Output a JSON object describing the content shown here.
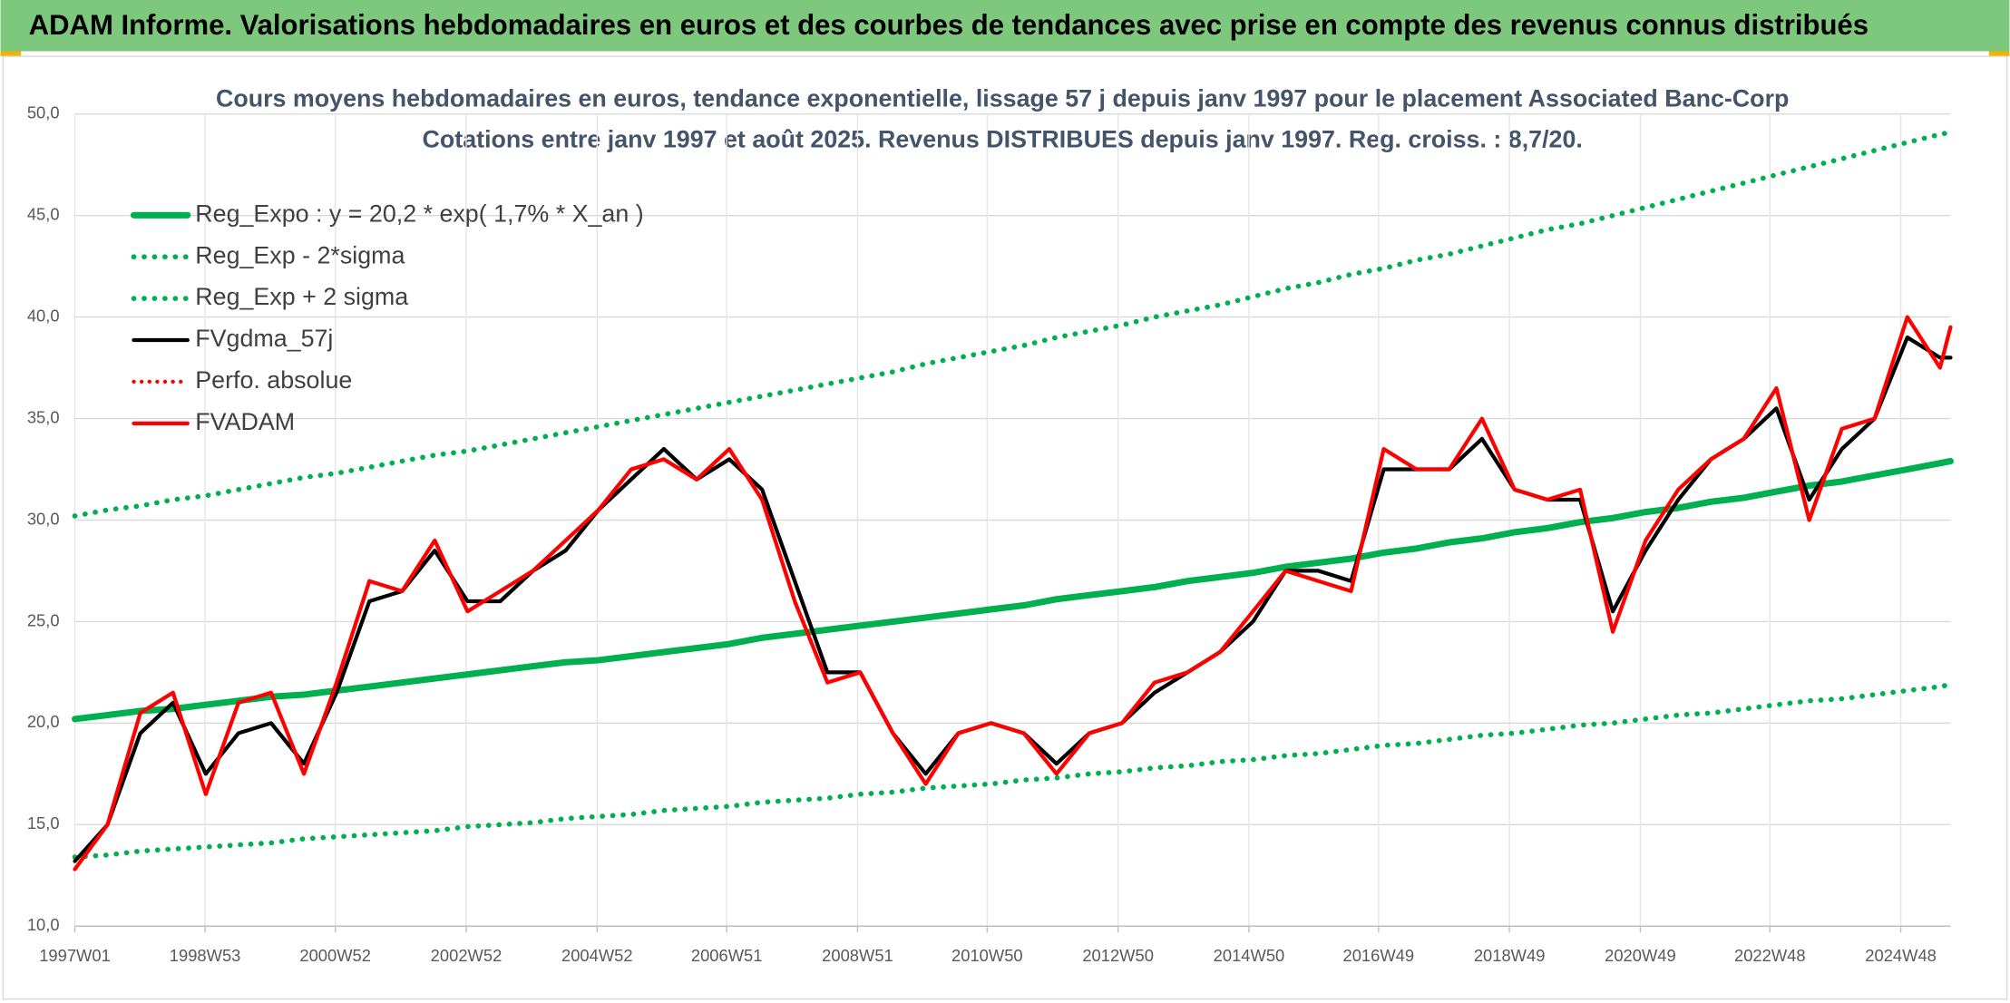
{
  "header": {
    "title": "ADAM Informe. Valorisations hebdomadaires en euros et des courbes de tendances avec prise en compte des revenus connus distribués"
  },
  "chart_data": {
    "type": "line",
    "title": "Cours moyens hebdomadaires en euros, tendance exponentielle, lissage 57 j depuis janv 1997 pour le placement Associated Banc-Corp",
    "subtitle": "Cotations entre janv 1997 et août 2025. Revenus DISTRIBUES depuis janv 1997. Reg. croiss. : 8,7/20.",
    "x": [
      1997.0,
      1997.5,
      1998.0,
      1998.5,
      1999.0,
      1999.5,
      2000.0,
      2000.5,
      2001.0,
      2001.5,
      2002.0,
      2002.5,
      2003.0,
      2003.5,
      2004.0,
      2004.5,
      2005.0,
      2005.5,
      2006.0,
      2006.5,
      2007.0,
      2007.5,
      2008.0,
      2008.5,
      2009.0,
      2009.5,
      2010.0,
      2010.5,
      2011.0,
      2011.5,
      2012.0,
      2012.5,
      2013.0,
      2013.5,
      2014.0,
      2014.5,
      2015.0,
      2015.5,
      2016.0,
      2016.5,
      2017.0,
      2017.5,
      2018.0,
      2018.5,
      2019.0,
      2019.5,
      2020.0,
      2020.5,
      2021.0,
      2021.5,
      2022.0,
      2022.5,
      2023.0,
      2023.5,
      2024.0,
      2024.5,
      2025.0,
      2025.5,
      2025.66
    ],
    "xlim": [
      1997.0,
      2025.66
    ],
    "xticks": [
      {
        "value": 1997.0,
        "label": "1997W01"
      },
      {
        "value": 1998.99,
        "label": "1998W53"
      },
      {
        "value": 2000.98,
        "label": "2000W52"
      },
      {
        "value": 2002.98,
        "label": "2002W52"
      },
      {
        "value": 2004.98,
        "label": "2004W52"
      },
      {
        "value": 2006.96,
        "label": "2006W51"
      },
      {
        "value": 2008.96,
        "label": "2008W51"
      },
      {
        "value": 2010.94,
        "label": "2010W50"
      },
      {
        "value": 2012.94,
        "label": "2012W50"
      },
      {
        "value": 2014.94,
        "label": "2014W50"
      },
      {
        "value": 2016.92,
        "label": "2016W49"
      },
      {
        "value": 2018.92,
        "label": "2018W49"
      },
      {
        "value": 2020.92,
        "label": "2020W49"
      },
      {
        "value": 2022.9,
        "label": "2022W48"
      },
      {
        "value": 2024.9,
        "label": "2024W48"
      }
    ],
    "ylim": [
      10,
      50
    ],
    "yticks": [
      {
        "value": 10,
        "label": "10,0"
      },
      {
        "value": 15,
        "label": "15,0"
      },
      {
        "value": 20,
        "label": "20,0"
      },
      {
        "value": 25,
        "label": "25,0"
      },
      {
        "value": 30,
        "label": "30,0"
      },
      {
        "value": 35,
        "label": "35,0"
      },
      {
        "value": 40,
        "label": "40,0"
      },
      {
        "value": 45,
        "label": "45,0"
      },
      {
        "value": 50,
        "label": "50,0"
      }
    ],
    "grid": true,
    "legend": "upper left",
    "series": [
      {
        "name": "Reg_Expo : y = 20,2 * exp( 1,7% *  X_an )",
        "color": "#00b050",
        "style": "solid",
        "width": 5,
        "values": [
          20.2,
          20.4,
          20.6,
          20.7,
          20.9,
          21.1,
          21.3,
          21.4,
          21.6,
          21.8,
          22.0,
          22.2,
          22.4,
          22.6,
          22.8,
          23.0,
          23.1,
          23.3,
          23.5,
          23.7,
          23.9,
          24.2,
          24.4,
          24.6,
          24.8,
          25.0,
          25.2,
          25.4,
          25.6,
          25.8,
          26.1,
          26.3,
          26.5,
          26.7,
          27.0,
          27.2,
          27.4,
          27.7,
          27.9,
          28.1,
          28.4,
          28.6,
          28.9,
          29.1,
          29.4,
          29.6,
          29.9,
          30.1,
          30.4,
          30.6,
          30.9,
          31.1,
          31.4,
          31.7,
          31.9,
          32.2,
          32.5,
          32.8,
          32.9
        ]
      },
      {
        "name": "Reg_Exp - 2*sigma",
        "color": "#00b050",
        "style": "dotted",
        "width": 4,
        "values": [
          13.4,
          13.5,
          13.7,
          13.8,
          13.9,
          14.0,
          14.1,
          14.3,
          14.4,
          14.5,
          14.6,
          14.7,
          14.9,
          15.0,
          15.1,
          15.3,
          15.4,
          15.5,
          15.7,
          15.8,
          15.9,
          16.1,
          16.2,
          16.3,
          16.5,
          16.6,
          16.8,
          16.9,
          17.0,
          17.2,
          17.3,
          17.5,
          17.6,
          17.8,
          17.9,
          18.1,
          18.2,
          18.4,
          18.5,
          18.7,
          18.9,
          19.0,
          19.2,
          19.4,
          19.5,
          19.7,
          19.9,
          20.0,
          20.2,
          20.4,
          20.5,
          20.7,
          20.9,
          21.1,
          21.2,
          21.4,
          21.6,
          21.8,
          21.9
        ]
      },
      {
        "name": "Reg_Exp + 2 sigma",
        "color": "#00b050",
        "style": "dotted",
        "width": 4,
        "values": [
          30.2,
          30.5,
          30.7,
          31.0,
          31.2,
          31.5,
          31.8,
          32.1,
          32.3,
          32.6,
          32.9,
          33.2,
          33.4,
          33.7,
          34.0,
          34.3,
          34.6,
          34.9,
          35.2,
          35.5,
          35.8,
          36.1,
          36.4,
          36.7,
          37.0,
          37.3,
          37.7,
          38.0,
          38.3,
          38.6,
          39.0,
          39.3,
          39.6,
          40.0,
          40.3,
          40.6,
          41.0,
          41.4,
          41.7,
          42.1,
          42.4,
          42.8,
          43.1,
          43.5,
          43.9,
          44.3,
          44.6,
          45.0,
          45.4,
          45.8,
          46.2,
          46.6,
          47.0,
          47.4,
          47.8,
          48.2,
          48.6,
          49.0,
          49.1
        ]
      },
      {
        "name": "FVgdma_57j",
        "color": "#000000",
        "style": "solid",
        "width": 3,
        "values": [
          13.2,
          15.0,
          19.5,
          21.0,
          17.5,
          19.5,
          20.0,
          18.0,
          21.5,
          26.0,
          26.5,
          28.5,
          26.0,
          26.0,
          27.5,
          28.5,
          30.5,
          32.0,
          33.5,
          32.0,
          33.0,
          31.5,
          27.0,
          22.5,
          22.5,
          19.5,
          17.5,
          19.5,
          20.0,
          19.5,
          18.0,
          19.5,
          20.0,
          21.5,
          22.5,
          23.5,
          25.0,
          27.5,
          27.5,
          27.0,
          32.5,
          32.5,
          32.5,
          34.0,
          31.5,
          31.0,
          31.0,
          25.5,
          28.5,
          31.0,
          33.0,
          34.0,
          35.5,
          31.0,
          33.5,
          35.0,
          39.0,
          38.0,
          38.0
        ]
      },
      {
        "name": "Perfo. absolue",
        "color": "#ff0000",
        "style": "dotted",
        "width": 3,
        "values": [
          null,
          null,
          null,
          null,
          null,
          null,
          null,
          null,
          null,
          null,
          null,
          null,
          null,
          null,
          null,
          null,
          null,
          null,
          null,
          null,
          null,
          null,
          null,
          null,
          null,
          null,
          null,
          null,
          null,
          null,
          null,
          null,
          null,
          null,
          null,
          null,
          null,
          null,
          null,
          null,
          null,
          null,
          null,
          null,
          null,
          null,
          null,
          null,
          null,
          null,
          null,
          null,
          null,
          null,
          null,
          null,
          null,
          null,
          null
        ]
      },
      {
        "name": "FVADAM",
        "color": "#ff0000",
        "style": "solid",
        "width": 3,
        "values": [
          12.8,
          15.0,
          20.5,
          21.5,
          16.5,
          21.0,
          21.5,
          17.5,
          22.0,
          27.0,
          26.5,
          29.0,
          25.5,
          26.5,
          27.5,
          29.0,
          30.5,
          32.5,
          33.0,
          32.0,
          33.5,
          31.0,
          26.0,
          22.0,
          22.5,
          19.5,
          17.0,
          19.5,
          20.0,
          19.5,
          17.5,
          19.5,
          20.0,
          22.0,
          22.5,
          23.5,
          25.5,
          27.5,
          27.0,
          26.5,
          33.5,
          32.5,
          32.5,
          35.0,
          31.5,
          31.0,
          31.5,
          24.5,
          29.0,
          31.5,
          33.0,
          34.0,
          36.5,
          30.0,
          34.5,
          35.0,
          40.0,
          37.5,
          39.5
        ]
      }
    ]
  }
}
